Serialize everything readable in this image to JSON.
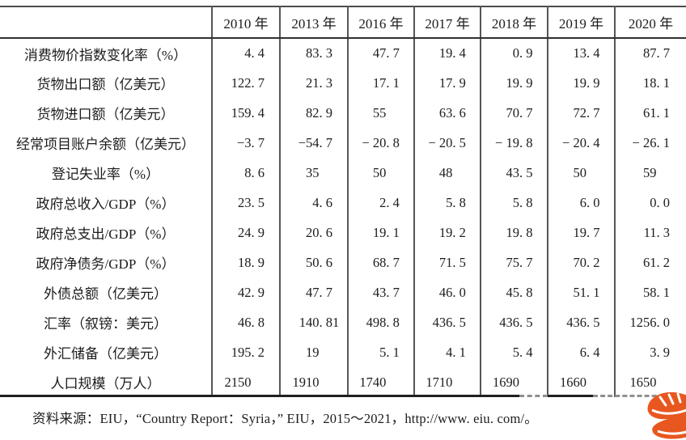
{
  "table": {
    "columns": [
      "",
      "2010 年",
      "2013 年",
      "2016 年",
      "2017 年",
      "2018 年",
      "2019 年",
      "2020 年"
    ],
    "rows": [
      {
        "label": "消费物价指数变化率（%）",
        "values": [
          "4. 4",
          "83. 3",
          "47. 7",
          "19. 4",
          "0. 9",
          "13. 4",
          "87. 7"
        ]
      },
      {
        "label": "货物出口额（亿美元）",
        "values": [
          "122. 7",
          "21. 3",
          "17. 1",
          "17. 9",
          "19. 9",
          "19. 9",
          "18. 1"
        ]
      },
      {
        "label": "货物进口额（亿美元）",
        "values": [
          "159. 4",
          "82. 9",
          "55",
          "63. 6",
          "70. 7",
          "72. 7",
          "61. 1"
        ]
      },
      {
        "label": "经常项目账户余额（亿美元）",
        "values": [
          "−3. 7",
          "−54. 7",
          "− 20. 8",
          "− 20. 5",
          "− 19. 8",
          "− 20. 4",
          "− 26. 1"
        ]
      },
      {
        "label": "登记失业率（%）",
        "values": [
          "8. 6",
          "35",
          "50",
          "48",
          "43. 5",
          "50",
          "59"
        ]
      },
      {
        "label": "政府总收入/GDP（%）",
        "values": [
          "23. 5",
          "4. 6",
          "2. 4",
          "5. 8",
          "5. 8",
          "6. 0",
          "0. 0"
        ]
      },
      {
        "label": "政府总支出/GDP（%）",
        "values": [
          "24. 9",
          "20. 6",
          "19. 1",
          "19. 2",
          "19. 8",
          "19. 7",
          "11. 3"
        ]
      },
      {
        "label": "政府净债务/GDP（%）",
        "values": [
          "18. 9",
          "50. 6",
          "68. 7",
          "71. 5",
          "75. 7",
          "70. 2",
          "61. 2"
        ]
      },
      {
        "label": "外债总额（亿美元）",
        "values": [
          "42. 9",
          "47. 7",
          "43. 7",
          "46. 0",
          "45. 8",
          "51. 1",
          "58. 1"
        ]
      },
      {
        "label": "汇率（叙镑：美元）",
        "values": [
          "46. 8",
          "140. 81",
          "498. 8",
          "436. 5",
          "436. 5",
          "436. 5",
          "1256. 0"
        ]
      },
      {
        "label": "外汇储备（亿美元）",
        "values": [
          "195. 2",
          "19",
          "5. 1",
          "4. 1",
          "5. 4",
          "6. 4",
          "3. 9"
        ]
      },
      {
        "label": "人口规模（万人）",
        "values": [
          "2150",
          "1910",
          "1740",
          "1710",
          "1690",
          "1660",
          "1650"
        ]
      }
    ]
  },
  "source_note": "资料来源：EIU，“Country Report：Syria，” EIU，2015～2021，http://www. eiu. com/。",
  "watermark": {
    "icon": "orange-s-logo",
    "color": "#e8571f"
  }
}
